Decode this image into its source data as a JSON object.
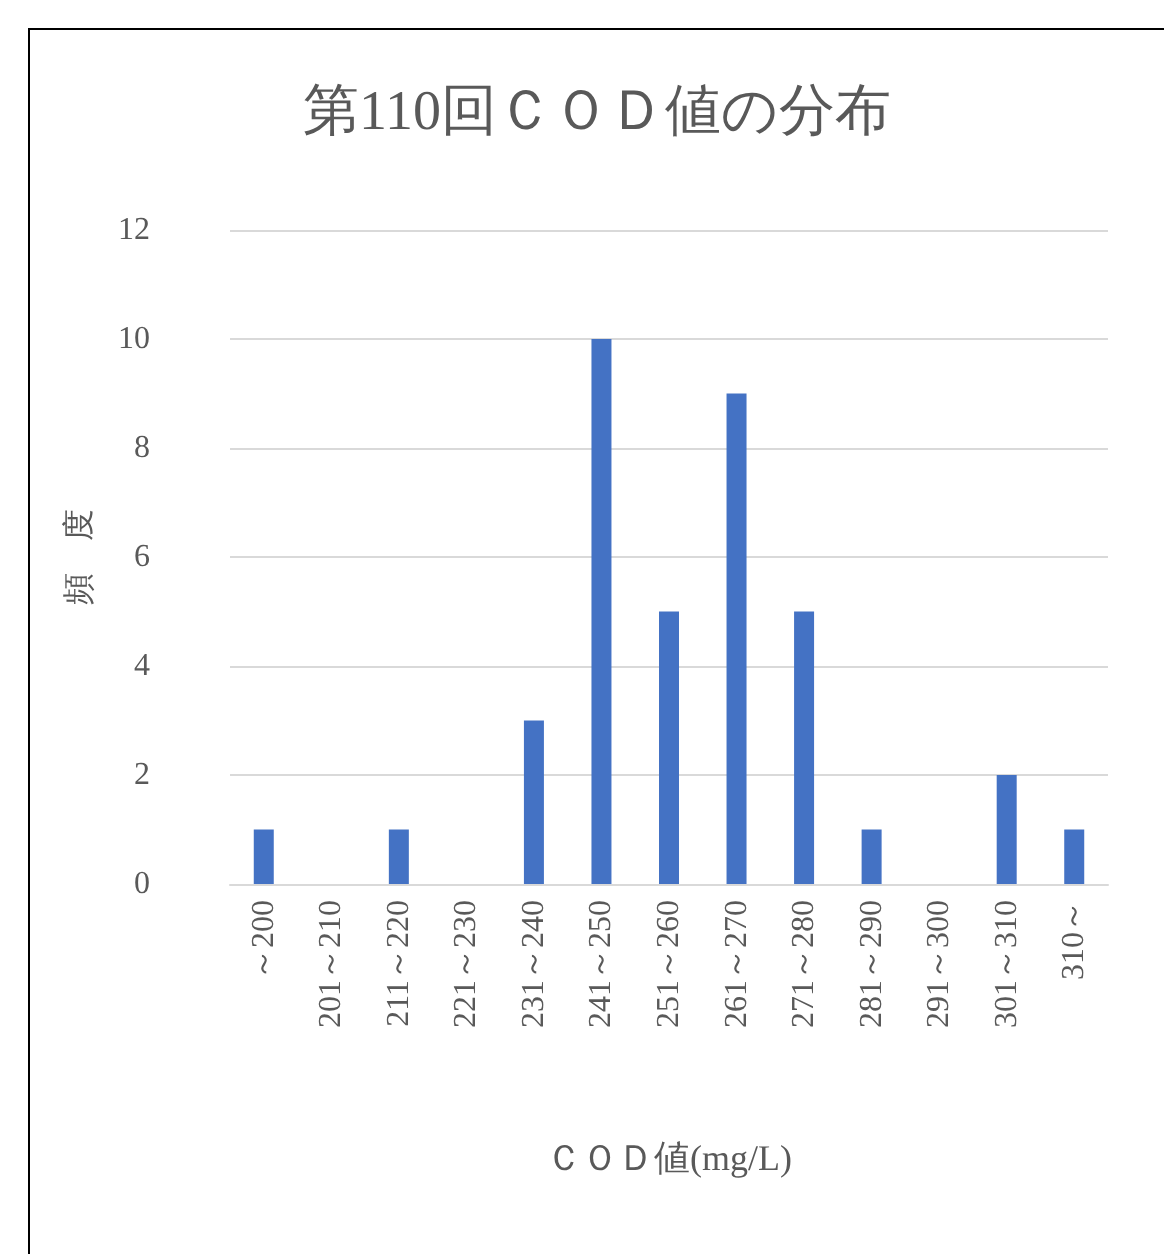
{
  "chart_data": {
    "type": "bar",
    "title": "第110回ＣＯＤ値の分布",
    "xlabel": "ＣＯＤ値(mg/L)",
    "ylabel": "頻　度",
    "categories": [
      "～200",
      "201～210",
      "211～220",
      "221～230",
      "231～240",
      "241～250",
      "251～260",
      "261～270",
      "271～280",
      "281～290",
      "291～300",
      "301～310",
      "310～"
    ],
    "values": [
      1,
      0,
      1,
      0,
      3,
      10,
      5,
      9,
      5,
      1,
      0,
      2,
      1
    ],
    "color": "#4472c4",
    "ylim": [
      0,
      12
    ],
    "yticks": [
      0,
      2,
      4,
      6,
      8,
      10,
      12
    ],
    "grid": "y"
  }
}
